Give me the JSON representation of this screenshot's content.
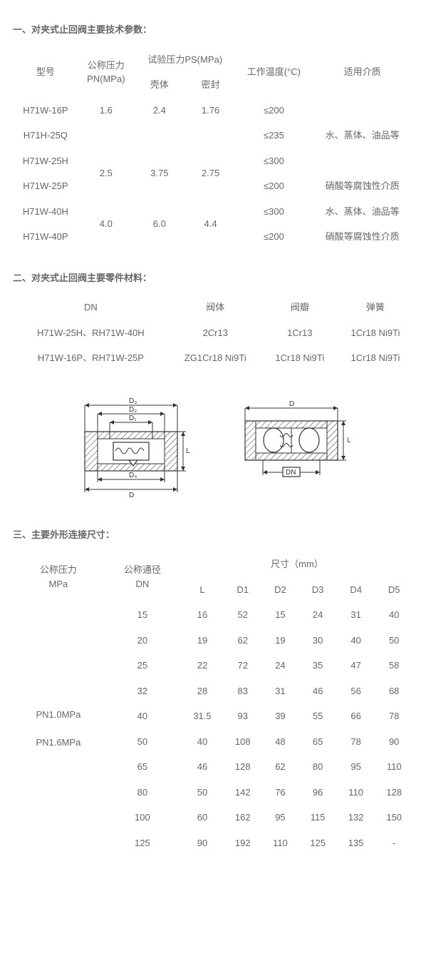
{
  "section1": {
    "title": "一、对夹式止回阀主要技术参数：",
    "headers": {
      "model": "型号",
      "pn": "公称压力\nPN(MPa)",
      "ps_group": "试验压力PS(MPa)",
      "ps_shell": "壳体",
      "ps_seal": "密封",
      "temp": "工作温度(°C)",
      "medium": "适用介质"
    },
    "rows": [
      {
        "model": "H71W-16P",
        "pn": "1.6",
        "shell": "2.4",
        "seal": "1.76",
        "temp": "≤200",
        "medium": ""
      },
      {
        "model": "H71H-25Q",
        "pn": "",
        "shell": "",
        "seal": "",
        "temp": "≤235",
        "medium": "水、蒸体、油品等"
      },
      {
        "model": "H71W-25H",
        "pn": "2.5",
        "shell": "3.75",
        "seal": "2.75",
        "temp": "≤300",
        "medium": ""
      },
      {
        "model": "H71W-25P",
        "pn": "",
        "shell": "",
        "seal": "",
        "temp": "≤200",
        "medium": "硝酸等腐蚀性介质"
      },
      {
        "model": "H71W-40H",
        "pn": "4.0",
        "shell": "6.0",
        "seal": "4.4",
        "temp": "≤300",
        "medium": "水、蒸体、油品等"
      },
      {
        "model": "H71W-40P",
        "pn": "",
        "shell": "",
        "seal": "",
        "temp": "≤200",
        "medium": "硝酸等腐蚀性介质"
      }
    ]
  },
  "section2": {
    "title": "二、对夹式止回阀主要零件材料：",
    "headers": {
      "dn": "DN",
      "body": "阀体",
      "disc": "阀瓣",
      "spring": "弹簧"
    },
    "rows": [
      {
        "dn": "H71W-25H、RH71W-40H",
        "body": "2Cr13",
        "disc": "1Cr13",
        "spring": "1Cr18 Ni9Ti"
      },
      {
        "dn": "H71W-16P、RH71W-25P",
        "body": "ZG1Cr18 Ni9Ti",
        "disc": "1Cr18 Ni9Ti",
        "spring": "1Cr18 Ni9Ti"
      }
    ]
  },
  "diagram": {
    "labels": {
      "D": "D",
      "D1": "D₁",
      "D2": "D₂",
      "D3": "D₃",
      "D4": "D₄",
      "L": "L",
      "DN": "DN"
    },
    "colors": {
      "stroke": "#333333",
      "hatch": "#333333",
      "bg": "#ffffff"
    }
  },
  "section3": {
    "title": "三、主要外形连接尺寸：",
    "headers": {
      "pn": "公称压力\nMPa",
      "dn": "公称通径\nDN",
      "size_group": "尺寸（mm）",
      "L": "L",
      "D1": "D1",
      "D2": "D2",
      "D3": "D3",
      "D4": "D4",
      "D5": "D5"
    },
    "pn_label": "PN1.0MPa\n\nPN1.6MPa",
    "rows": [
      {
        "dn": "15",
        "L": "16",
        "D1": "52",
        "D2": "15",
        "D3": "24",
        "D4": "31",
        "D5": "40"
      },
      {
        "dn": "20",
        "L": "19",
        "D1": "62",
        "D2": "19",
        "D3": "30",
        "D4": "40",
        "D5": "50"
      },
      {
        "dn": "25",
        "L": "22",
        "D1": "72",
        "D2": "24",
        "D3": "35",
        "D4": "47",
        "D5": "58"
      },
      {
        "dn": "32",
        "L": "28",
        "D1": "83",
        "D2": "31",
        "D3": "46",
        "D4": "56",
        "D5": "68"
      },
      {
        "dn": "40",
        "L": "31.5",
        "D1": "93",
        "D2": "39",
        "D3": "55",
        "D4": "66",
        "D5": "78"
      },
      {
        "dn": "50",
        "L": "40",
        "D1": "108",
        "D2": "48",
        "D3": "65",
        "D4": "78",
        "D5": "90"
      },
      {
        "dn": "65",
        "L": "46",
        "D1": "128",
        "D2": "62",
        "D3": "80",
        "D4": "95",
        "D5": "110"
      },
      {
        "dn": "80",
        "L": "50",
        "D1": "142",
        "D2": "76",
        "D3": "96",
        "D4": "110",
        "D5": "128"
      },
      {
        "dn": "100",
        "L": "60",
        "D1": "162",
        "D2": "95",
        "D3": "115",
        "D4": "132",
        "D5": "150"
      },
      {
        "dn": "125",
        "L": "90",
        "D1": "192",
        "D2": "110",
        "D3": "125",
        "D4": "135",
        "D5": "-"
      }
    ]
  }
}
